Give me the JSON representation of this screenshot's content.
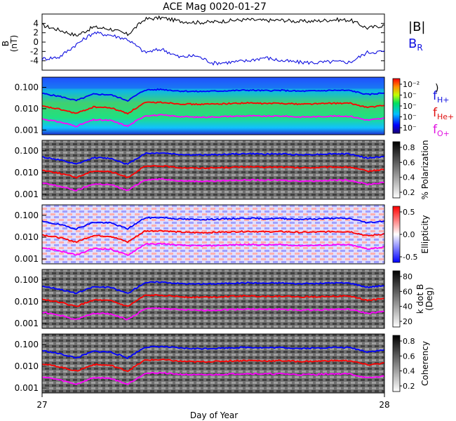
{
  "title": "ACE Mag 0020-01-27",
  "xlabel": "Day of Year",
  "x_ticks": [
    "27",
    "28"
  ],
  "colors": {
    "btot": "#000000",
    "br": "#1010e0",
    "h": "#0000ff",
    "he": "#ff0000",
    "o": "#ff00ff"
  },
  "chart_data": [
    {
      "type": "line",
      "panel": "magnetic-field",
      "ylabel": "B (nT)",
      "ylim": [
        -6,
        6
      ],
      "y_ticks": [
        4,
        2,
        0,
        -2,
        -4
      ],
      "x": [
        27.0,
        27.05,
        27.1,
        27.15,
        27.2,
        27.25,
        27.3,
        27.35,
        27.4,
        27.45,
        27.5,
        27.55,
        27.6,
        27.65,
        27.7,
        27.75,
        27.8,
        27.85,
        27.9,
        27.95,
        28.0
      ],
      "series": [
        {
          "name": "|B|",
          "values": [
            3.6,
            2.6,
            1.4,
            3.2,
            2.8,
            1.6,
            4.9,
            5.2,
            4.5,
            4.2,
            4.3,
            4.6,
            4.8,
            4.6,
            4.7,
            4.4,
            4.5,
            4.8,
            4.7,
            3.0,
            3.6
          ]
        },
        {
          "name": "B_R",
          "values": [
            -3.6,
            -3.2,
            -0.5,
            2.0,
            1.5,
            0.6,
            -2.2,
            -1.5,
            -3.2,
            -2.9,
            -4.5,
            -4.3,
            -4.0,
            -3.3,
            -4.0,
            -4.3,
            -4.4,
            -4.2,
            -4.3,
            -2.2,
            -2.0
          ]
        }
      ],
      "legend": [
        "|B|",
        "B_R"
      ]
    },
    {
      "type": "heatmap",
      "panel": "power",
      "colorbar_ticks": [
        "10⁻²",
        "10⁻",
        "10⁻",
        "10⁻",
        "10⁻"
      ],
      "legend": [
        "f_H+",
        "f_He+",
        "f_O+"
      ]
    },
    {
      "type": "heatmap",
      "panel": "polarization",
      "colorbar_label": "% Polarization",
      "colorbar_ticks": [
        "0.8",
        "0.6",
        "0.4",
        "0.2"
      ]
    },
    {
      "type": "heatmap",
      "panel": "ellipticity",
      "colorbar_label": "Ellipticity",
      "colorbar_ticks": [
        "0.5",
        "0.0",
        "-0.5"
      ]
    },
    {
      "type": "heatmap",
      "panel": "kdotb",
      "colorbar_label": "k dot B (Deg)",
      "colorbar_ticks": [
        "80",
        "60",
        "40",
        "20"
      ]
    },
    {
      "type": "heatmap",
      "panel": "coherency",
      "colorbar_label": "Coherency",
      "colorbar_ticks": [
        "0.8",
        "0.6",
        "0.4",
        "0.2"
      ]
    }
  ],
  "freq_axis": {
    "scale": "log",
    "ylim": [
      0.0006,
      0.3
    ],
    "y_ticks": [
      0.1,
      0.01,
      0.001
    ],
    "y_tick_labels": [
      "0.100",
      "0.010",
      "0.001"
    ]
  },
  "gyrofrequencies": {
    "x": [
      27.0,
      27.05,
      27.1,
      27.15,
      27.2,
      27.25,
      27.3,
      27.35,
      27.4,
      27.45,
      27.5,
      27.55,
      27.6,
      27.65,
      27.7,
      27.75,
      27.8,
      27.85,
      27.9,
      27.95,
      28.0
    ],
    "f_H+": [
      0.052,
      0.038,
      0.024,
      0.048,
      0.045,
      0.024,
      0.075,
      0.08,
      0.068,
      0.064,
      0.066,
      0.07,
      0.074,
      0.07,
      0.072,
      0.066,
      0.068,
      0.073,
      0.071,
      0.046,
      0.055
    ],
    "f_He+": [
      0.013,
      0.0095,
      0.006,
      0.012,
      0.011,
      0.006,
      0.019,
      0.02,
      0.017,
      0.016,
      0.0165,
      0.0175,
      0.0185,
      0.0175,
      0.018,
      0.0165,
      0.017,
      0.018,
      0.0178,
      0.0115,
      0.014
    ],
    "f_O+": [
      0.0033,
      0.0024,
      0.0015,
      0.003,
      0.0028,
      0.0015,
      0.0047,
      0.005,
      0.0043,
      0.004,
      0.0041,
      0.0044,
      0.0046,
      0.0044,
      0.0045,
      0.0041,
      0.0042,
      0.0045,
      0.0044,
      0.0029,
      0.0035
    ]
  },
  "legend_labels": {
    "btot": "|B|",
    "br_main": "B",
    "br_sub": "R",
    "h_main": "f",
    "h_sub": "H+",
    "he_main": "f",
    "he_sub": "He+",
    "o_main": "f",
    "o_sub": "O+"
  },
  "b_ylabel_main": "B",
  "b_ylabel_unit": "(nT)",
  "kdotb_label_1": "k dot B",
  "kdotb_label_2": "(Deg)",
  "power_bracket": ")"
}
